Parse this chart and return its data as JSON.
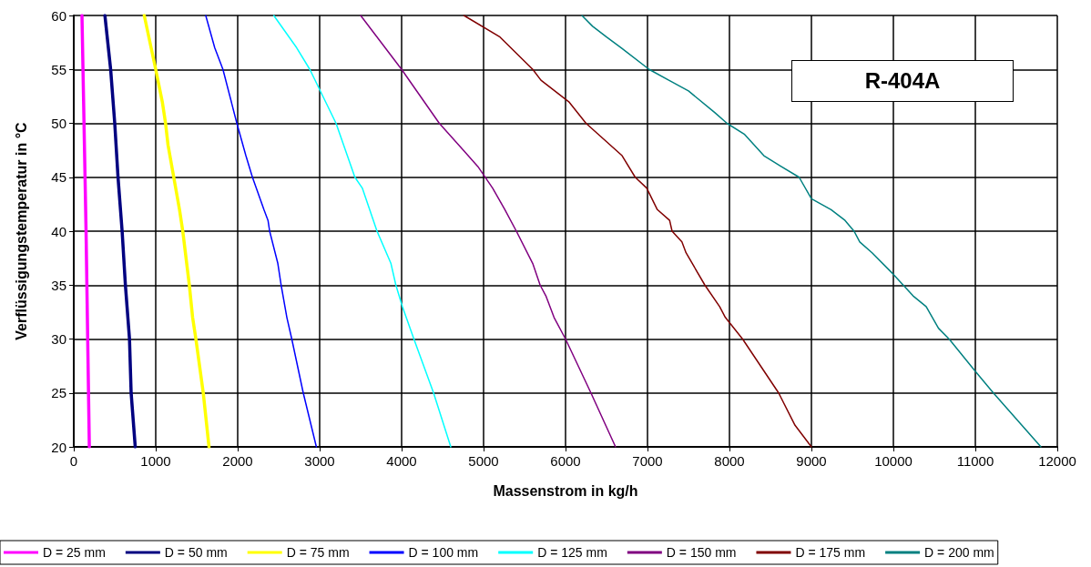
{
  "chart_data": {
    "type": "line",
    "xlabel": "Massenstrom in kg/h",
    "ylabel": "Verflüssigungstemperatur in °C",
    "annotations": [
      "R-404A"
    ],
    "xlim": [
      0,
      12000
    ],
    "xticks": [
      0,
      1000,
      2000,
      3000,
      4000,
      5000,
      6000,
      7000,
      8000,
      9000,
      10000,
      11000,
      12000
    ],
    "ylim": [
      20,
      60
    ],
    "yticks": [
      20,
      25,
      30,
      35,
      40,
      45,
      50,
      55,
      60
    ],
    "grid": true,
    "legend": "bottom",
    "series": [
      {
        "name": "D = 25 mm",
        "color": "#ff00ff",
        "x": [
          190,
          170,
          150,
          125,
          100
        ],
        "values": [
          20,
          30,
          40,
          50,
          60
        ]
      },
      {
        "name": "D = 50 mm",
        "color": "#000080",
        "x": [
          750,
          700,
          680,
          630,
          590,
          540,
          500,
          450,
          380
        ],
        "values": [
          20,
          25,
          30,
          35,
          40,
          45,
          50,
          55,
          60
        ]
      },
      {
        "name": "D = 75 mm",
        "color": "#ffff00",
        "x": [
          1650,
          1580,
          1490,
          1450,
          1410,
          1330,
          1290,
          1220,
          1150,
          1120,
          1080,
          1000,
          860
        ],
        "values": [
          20,
          25,
          30,
          32,
          35,
          40,
          42,
          45,
          48,
          50,
          52,
          55,
          60
        ]
      },
      {
        "name": "D = 100 mm",
        "color": "#0000ff",
        "x": [
          2960,
          2800,
          2660,
          2600,
          2530,
          2490,
          2390,
          2370,
          2320,
          2180,
          2100,
          1990,
          1820,
          1720,
          1610
        ],
        "values": [
          20,
          25,
          30,
          32,
          35,
          37,
          40,
          41,
          42,
          45,
          47,
          50,
          55,
          57,
          60
        ]
      },
      {
        "name": "D = 125 mm",
        "color": "#00ffff",
        "x": [
          4600,
          4390,
          4150,
          4010,
          3930,
          3870,
          3700,
          3520,
          3430,
          3200,
          2880,
          2720,
          2440
        ],
        "values": [
          20,
          25,
          30,
          33,
          35,
          37,
          40,
          44,
          45,
          50,
          55,
          57,
          60
        ]
      },
      {
        "name": "D = 150 mm",
        "color": "#800080",
        "x": [
          6610,
          6310,
          6000,
          5860,
          5760,
          5690,
          5600,
          5400,
          5260,
          5110,
          4930,
          4460,
          4000,
          3500
        ],
        "values": [
          20,
          25,
          30,
          32,
          34,
          35,
          37,
          40,
          42,
          44,
          46,
          50,
          55,
          60
        ]
      },
      {
        "name": "D = 175 mm",
        "color": "#800000",
        "x": [
          9000,
          8800,
          8600,
          8160,
          7950,
          7880,
          7700,
          7470,
          7420,
          7300,
          7270,
          7120,
          6990,
          6850,
          6690,
          6250,
          6040,
          5700,
          5600,
          5200,
          4760
        ],
        "values": [
          20,
          22,
          25,
          30,
          32,
          33,
          35,
          38,
          39,
          40,
          41,
          42,
          44,
          45,
          47,
          50,
          52,
          54,
          55,
          58,
          60
        ]
      },
      {
        "name": "D = 200 mm",
        "color": "#008080",
        "x": [
          11800,
          11220,
          11000,
          10680,
          10550,
          10400,
          10240,
          10120,
          10000,
          9740,
          9590,
          9520,
          9410,
          9240,
          9000,
          8850,
          8630,
          8420,
          8180,
          7970,
          7820,
          7500,
          7260,
          7020,
          6680,
          6500,
          6330,
          6200
        ],
        "values": [
          20,
          25,
          27,
          30,
          31,
          33,
          34,
          35,
          36,
          38,
          39,
          40,
          41,
          42,
          43,
          45,
          46,
          47,
          49,
          50,
          51,
          53,
          54,
          55,
          57,
          58,
          59,
          60
        ]
      }
    ]
  }
}
